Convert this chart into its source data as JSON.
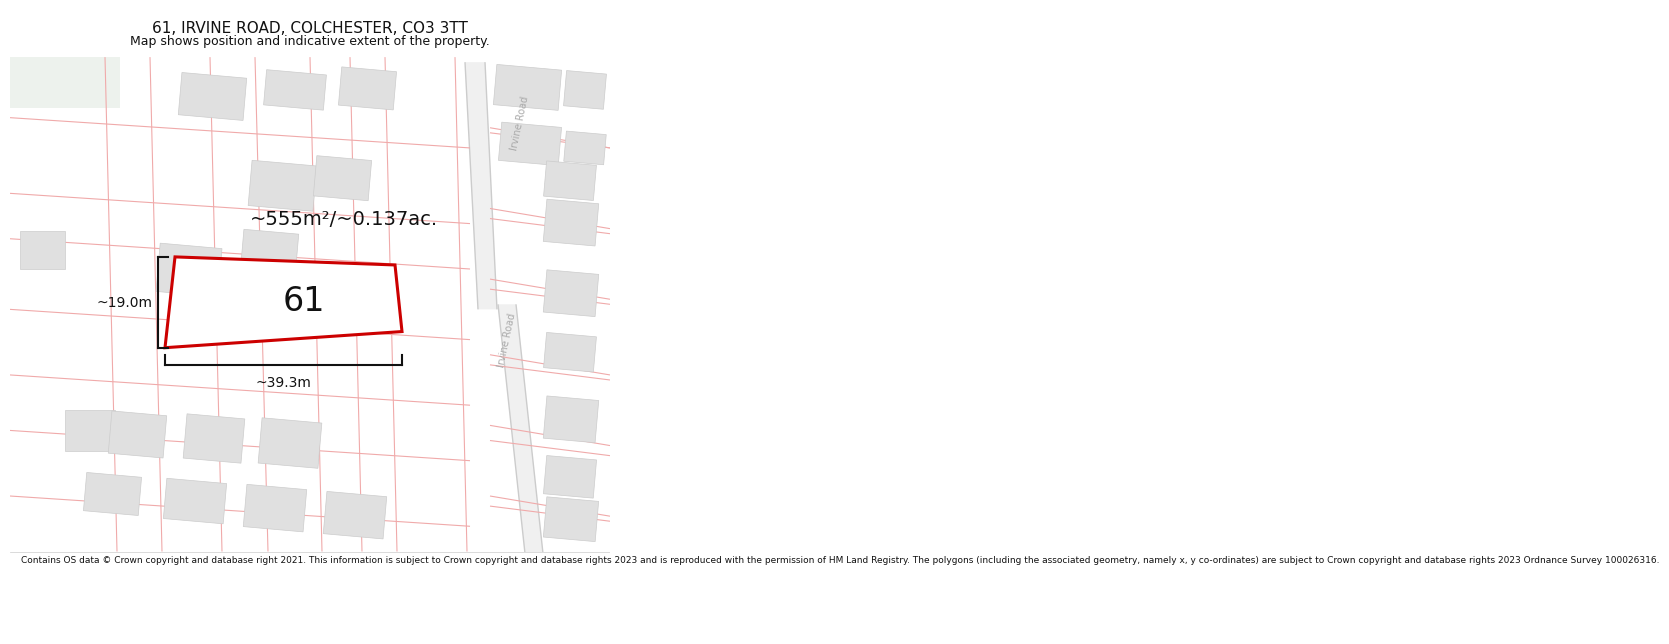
{
  "title": "61, IRVINE ROAD, COLCHESTER, CO3 3TT",
  "subtitle": "Map shows position and indicative extent of the property.",
  "footer": "Contains OS data © Crown copyright and database right 2021. This information is subject to Crown copyright and database rights 2023 and is reproduced with the permission of HM Land Registry. The polygons (including the associated geometry, namely x, y co-ordinates) are subject to Crown copyright and database rights 2023 Ordnance Survey 100026316.",
  "area_label": "~555m²/~0.137ac.",
  "width_label": "~39.3m",
  "height_label": "~19.0m",
  "plot_number": "61",
  "background_color": "#ffffff",
  "subject_poly_color": "#cc0000",
  "subject_poly_lw": 2.2,
  "irvine_road_label": "Irvine Road",
  "road_pink": "#f0aaaa",
  "road_gray": "#cccccc",
  "building_fill": "#e0e0e0",
  "building_edge": "#cccccc",
  "title_fontsize": 11,
  "subtitle_fontsize": 9,
  "footer_fontsize": 6.5,
  "area_fontsize": 14,
  "plot_label_fontsize": 24,
  "dim_fontsize": 10,
  "road_label_fontsize": 7,
  "map_bg": "#f8f8f8"
}
